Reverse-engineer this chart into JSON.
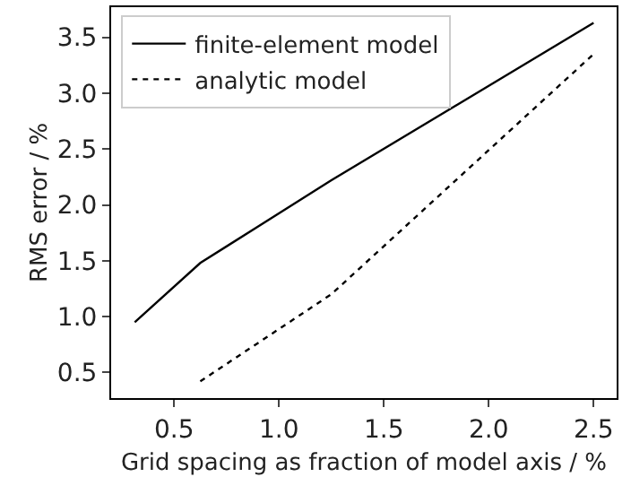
{
  "chart_data": {
    "type": "line",
    "xlabel": "Grid spacing as fraction of model axis / %",
    "ylabel": "RMS error / %",
    "series": [
      {
        "name": "finite-element model",
        "color": "#000000",
        "line_style": "solid",
        "x": [
          0.3125,
          0.625,
          1.25,
          2.5
        ],
        "values": [
          0.95,
          1.48,
          2.22,
          3.63
        ]
      },
      {
        "name": "analytic model",
        "color": "#000000",
        "line_style": "dotted",
        "x": [
          0.625,
          1.25,
          2.5
        ],
        "values": [
          0.42,
          1.2,
          3.35
        ]
      }
    ],
    "xlim": [
      0.2,
      2.61
    ],
    "ylim": [
      0.27,
      3.77
    ],
    "xticks": [
      0.5,
      {
        "value": 1,
        "label": "1.0"
      },
      1.5,
      {
        "value": 2,
        "label": "2.0"
      },
      2.5
    ],
    "yticks": [
      0.5,
      {
        "value": 1,
        "label": "1.0"
      },
      1.5,
      {
        "value": 2,
        "label": "2.0"
      },
      2.5,
      {
        "value": 3,
        "label": "3.0"
      },
      3.5
    ],
    "grid": false,
    "legend": "top left",
    "marker": "none"
  }
}
